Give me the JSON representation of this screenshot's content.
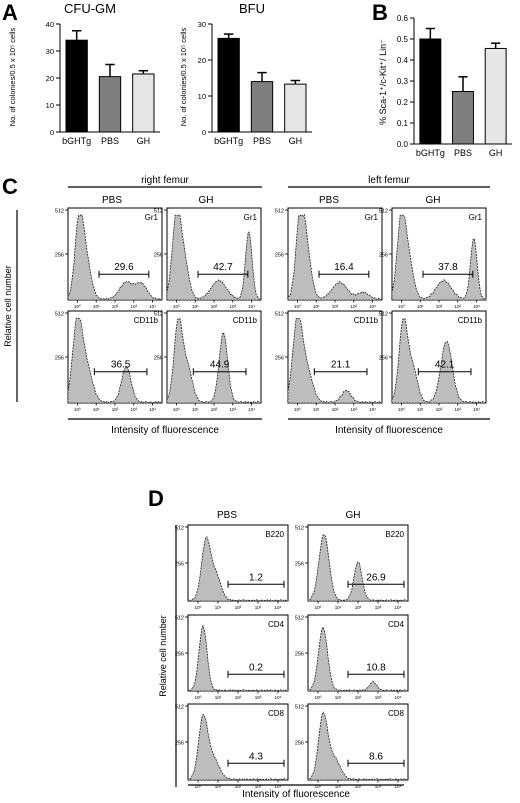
{
  "colors": {
    "black": "#000000",
    "dark_gray": "#7f7f7f",
    "light_gray": "#e6e6e6",
    "histogram_fill": "#bdbdbd"
  },
  "panel_A": {
    "letter": "A",
    "charts": [
      {
        "title": "CFU-GM",
        "ylabel": "No. of colonies/0.5 x 10⁵ cells",
        "ylim": [
          0,
          40
        ],
        "yticks": [
          "0",
          "10",
          "20",
          "30",
          "40"
        ],
        "categories": [
          "bGHTg",
          "PBS",
          "GH"
        ],
        "values": [
          34,
          20.5,
          21.5
        ],
        "errors": [
          3.5,
          4.5,
          1.2
        ],
        "bar_colors": [
          "#000000",
          "#7f7f7f",
          "#e6e6e6"
        ]
      },
      {
        "title": "BFU",
        "ylabel": "No. of colonies/0.5 x 10⁵ cells",
        "ylim": [
          0,
          30
        ],
        "yticks": [
          "0",
          "10",
          "20",
          "30"
        ],
        "categories": [
          "bGHTg",
          "PBS",
          "GH"
        ],
        "values": [
          26,
          14,
          13.3
        ],
        "errors": [
          1.2,
          2.5,
          1
        ],
        "bar_colors": [
          "#000000",
          "#7f7f7f",
          "#e6e6e6"
        ]
      }
    ]
  },
  "panel_B": {
    "letter": "B",
    "chart": {
      "title": "",
      "ylabel": "% Sca-1⁺/c-Kit⁺/ Lin⁻",
      "ylim": [
        0,
        0.6
      ],
      "yticks": [
        "0.0",
        "0.1",
        "0.2",
        "0.3",
        "0.4",
        "0.5",
        "0.6"
      ],
      "categories": [
        "bGHTg",
        "PBS",
        "GH"
      ],
      "values": [
        0.5,
        0.25,
        0.455
      ],
      "errors": [
        0.05,
        0.07,
        0.025
      ],
      "bar_colors": [
        "#000000",
        "#7f7f7f",
        "#e6e6e6"
      ]
    }
  },
  "panel_C": {
    "letter": "C",
    "groups": [
      "right femur",
      "left femur"
    ],
    "column_headers": [
      "PBS",
      "GH",
      "PBS",
      "GH"
    ],
    "ylabel": "Relative cell number",
    "xlabel": "Intensity of fluorescence",
    "y_ticks": [
      "512",
      "256"
    ],
    "x_ticks": [
      "10⁰",
      "10¹",
      "10²",
      "10³",
      "10⁴"
    ],
    "rows": [
      {
        "marker": "Gr1",
        "percentages": [
          "29.6",
          "42.7",
          "16.4",
          "37.8"
        ]
      },
      {
        "marker": "CD11b",
        "percentages": [
          "36.5",
          "44.9",
          "21.1",
          "42.1"
        ]
      }
    ]
  },
  "panel_D": {
    "letter": "D",
    "column_headers": [
      "PBS",
      "GH"
    ],
    "ylabel": "Relative cell number",
    "xlabel": "Intensity of fluorescence",
    "y_ticks": [
      "512",
      "256"
    ],
    "x_ticks": [
      "10⁰",
      "10¹",
      "10²",
      "10³",
      "10⁴"
    ],
    "rows": [
      {
        "marker": "B220",
        "percentages": [
          "1.2",
          "26.9"
        ]
      },
      {
        "marker": "CD4",
        "percentages": [
          "0.2",
          "10.8"
        ]
      },
      {
        "marker": "CD8",
        "percentages": [
          "4.3",
          "8.6"
        ]
      }
    ]
  },
  "chart_data": [
    {
      "type": "bar",
      "title": "CFU-GM",
      "ylabel": "No. of colonies/0.5 x 10⁵ cells",
      "categories": [
        "bGHTg",
        "PBS",
        "GH"
      ],
      "values": [
        34,
        20.5,
        21.5
      ],
      "errors": [
        3.5,
        4.5,
        1.2
      ],
      "ylim": [
        0,
        40
      ]
    },
    {
      "type": "bar",
      "title": "BFU",
      "ylabel": "No. of colonies/0.5 x 10⁵ cells",
      "categories": [
        "bGHTg",
        "PBS",
        "GH"
      ],
      "values": [
        26,
        14,
        13.3
      ],
      "errors": [
        1.2,
        2.5,
        1
      ],
      "ylim": [
        0,
        30
      ]
    },
    {
      "type": "bar",
      "title": "",
      "ylabel": "% Sca-1⁺/c-Kit⁺/ Lin⁻",
      "categories": [
        "bGHTg",
        "PBS",
        "GH"
      ],
      "values": [
        0.5,
        0.25,
        0.455
      ],
      "errors": [
        0.05,
        0.07,
        0.025
      ],
      "ylim": [
        0,
        0.6
      ]
    }
  ]
}
